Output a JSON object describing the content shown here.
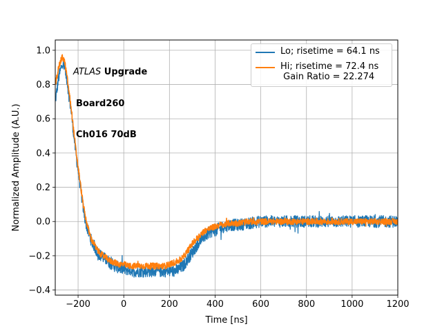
{
  "chart_data": {
    "type": "line",
    "xlabel": "Time [ns]",
    "ylabel": "Normalized Amplitude (A.U.)",
    "xlim": [
      -300,
      1200
    ],
    "ylim": [
      -0.43,
      1.06
    ],
    "xticks": [
      -200,
      0,
      200,
      400,
      600,
      800,
      1000,
      1200
    ],
    "xtick_labels": [
      "−200",
      "0",
      "200",
      "400",
      "600",
      "800",
      "1000",
      "1200"
    ],
    "yticks": [
      -0.4,
      -0.2,
      0.0,
      0.2,
      0.4,
      0.6,
      0.8,
      1.0
    ],
    "ytick_labels": [
      "−0.4",
      "−0.2",
      "0.0",
      "0.2",
      "0.4",
      "0.6",
      "0.8",
      "1.0"
    ],
    "grid": true,
    "legend_position": "upper-right",
    "annotation": {
      "italic": "ATLAS",
      "bold_1": " Upgrade",
      "line2": "Board260",
      "line3": "Ch016 70dB"
    },
    "series": [
      {
        "name": "Lo; risetime = 64.1 ns",
        "color": "#1f77b4",
        "x": [
          -300,
          -285,
          -270,
          -260,
          -250,
          -240,
          -230,
          -220,
          -210,
          -200,
          -190,
          -180,
          -170,
          -160,
          -150,
          -140,
          -130,
          -120,
          -100,
          -80,
          -60,
          -40,
          -20,
          0,
          20,
          50,
          80,
          100,
          120,
          150,
          180,
          200,
          220,
          240,
          260,
          280,
          300,
          320,
          340,
          360,
          380,
          400,
          420,
          440,
          460,
          500,
          550,
          600,
          650,
          700,
          800,
          900,
          1000,
          1100,
          1200
        ],
        "y": [
          0.7,
          0.84,
          0.92,
          0.9,
          0.84,
          0.74,
          0.64,
          0.52,
          0.4,
          0.3,
          0.2,
          0.1,
          0.02,
          -0.04,
          -0.08,
          -0.12,
          -0.14,
          -0.17,
          -0.2,
          -0.22,
          -0.24,
          -0.26,
          -0.27,
          -0.28,
          -0.28,
          -0.29,
          -0.29,
          -0.29,
          -0.29,
          -0.29,
          -0.29,
          -0.29,
          -0.29,
          -0.28,
          -0.26,
          -0.22,
          -0.18,
          -0.14,
          -0.1,
          -0.08,
          -0.06,
          -0.05,
          -0.04,
          -0.03,
          -0.02,
          -0.02,
          -0.01,
          0.0,
          0.0,
          0.0,
          0.0,
          0.0,
          0.0,
          0.0,
          0.0
        ],
        "noise": 0.035
      },
      {
        "name": "Hi; risetime = 72.4 ns\n Gain Ratio = 22.274",
        "color": "#ff7f0e",
        "x": [
          -300,
          -285,
          -270,
          -260,
          -250,
          -240,
          -230,
          -220,
          -210,
          -200,
          -190,
          -180,
          -170,
          -160,
          -150,
          -140,
          -130,
          -120,
          -100,
          -80,
          -60,
          -40,
          -20,
          0,
          20,
          50,
          80,
          100,
          120,
          150,
          180,
          200,
          220,
          240,
          260,
          280,
          300,
          320,
          340,
          360,
          380,
          400,
          420,
          440,
          460,
          500,
          550,
          600,
          650,
          700,
          800,
          900,
          1000,
          1100,
          1200
        ],
        "y": [
          0.8,
          0.9,
          0.96,
          0.94,
          0.86,
          0.76,
          0.66,
          0.54,
          0.42,
          0.32,
          0.22,
          0.12,
          0.04,
          -0.02,
          -0.07,
          -0.11,
          -0.13,
          -0.16,
          -0.19,
          -0.21,
          -0.23,
          -0.24,
          -0.25,
          -0.25,
          -0.26,
          -0.26,
          -0.26,
          -0.26,
          -0.26,
          -0.26,
          -0.26,
          -0.25,
          -0.24,
          -0.23,
          -0.21,
          -0.17,
          -0.13,
          -0.1,
          -0.07,
          -0.05,
          -0.04,
          -0.03,
          -0.02,
          -0.02,
          -0.01,
          -0.01,
          0.0,
          0.0,
          0.0,
          0.0,
          0.0,
          0.0,
          0.0,
          0.0,
          0.0
        ],
        "noise": 0.018
      }
    ]
  }
}
